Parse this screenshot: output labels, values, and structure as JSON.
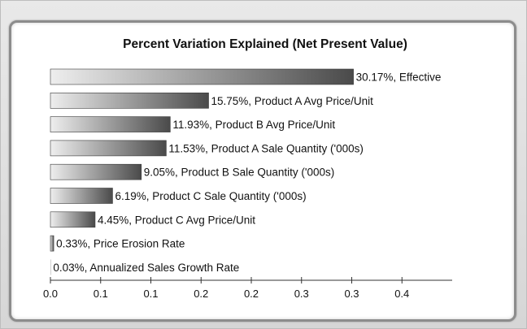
{
  "chart_data": {
    "type": "bar",
    "orientation": "horizontal",
    "title": "Percent Variation Explained (Net Present Value)",
    "xlim": [
      0,
      0.4
    ],
    "xticks": [
      "0.0",
      "0.1",
      "0.1",
      "0.2",
      "0.2",
      "0.3",
      "0.3",
      "0.4"
    ],
    "xtick_values": [
      0,
      0.05,
      0.1,
      0.15,
      0.2,
      0.25,
      0.3,
      0.35
    ],
    "grid": false,
    "legend": "none",
    "categories": [
      "Effective",
      "Product A Avg Price/Unit",
      "Product B Avg Price/Unit",
      "Product A Sale Quantity ('000s)",
      "Product B Sale Quantity ('000s)",
      "Product C Sale Quantity ('000s)",
      "Product C Avg Price/Unit",
      "Price Erosion Rate",
      "Annualized Sales Growth Rate"
    ],
    "values": [
      0.3017,
      0.1575,
      0.1193,
      0.1153,
      0.0905,
      0.0619,
      0.0445,
      0.0033,
      0.0003
    ],
    "labels": [
      "30.17%, Effective",
      "15.75%, Product A Avg Price/Unit",
      "11.93%, Product B Avg Price/Unit",
      "11.53%, Product A Sale Quantity ('000s)",
      "9.05%, Product B Sale Quantity ('000s)",
      "6.19%, Product C Sale Quantity ('000s)",
      "4.45%, Product C Avg Price/Unit",
      "0.33%, Price Erosion Rate",
      "0.03%, Annualized Sales Growth Rate"
    ],
    "colors": {
      "bar_light": "#eeeeee",
      "bar_dark": "#4a4a4a",
      "axis": "#333333"
    }
  }
}
